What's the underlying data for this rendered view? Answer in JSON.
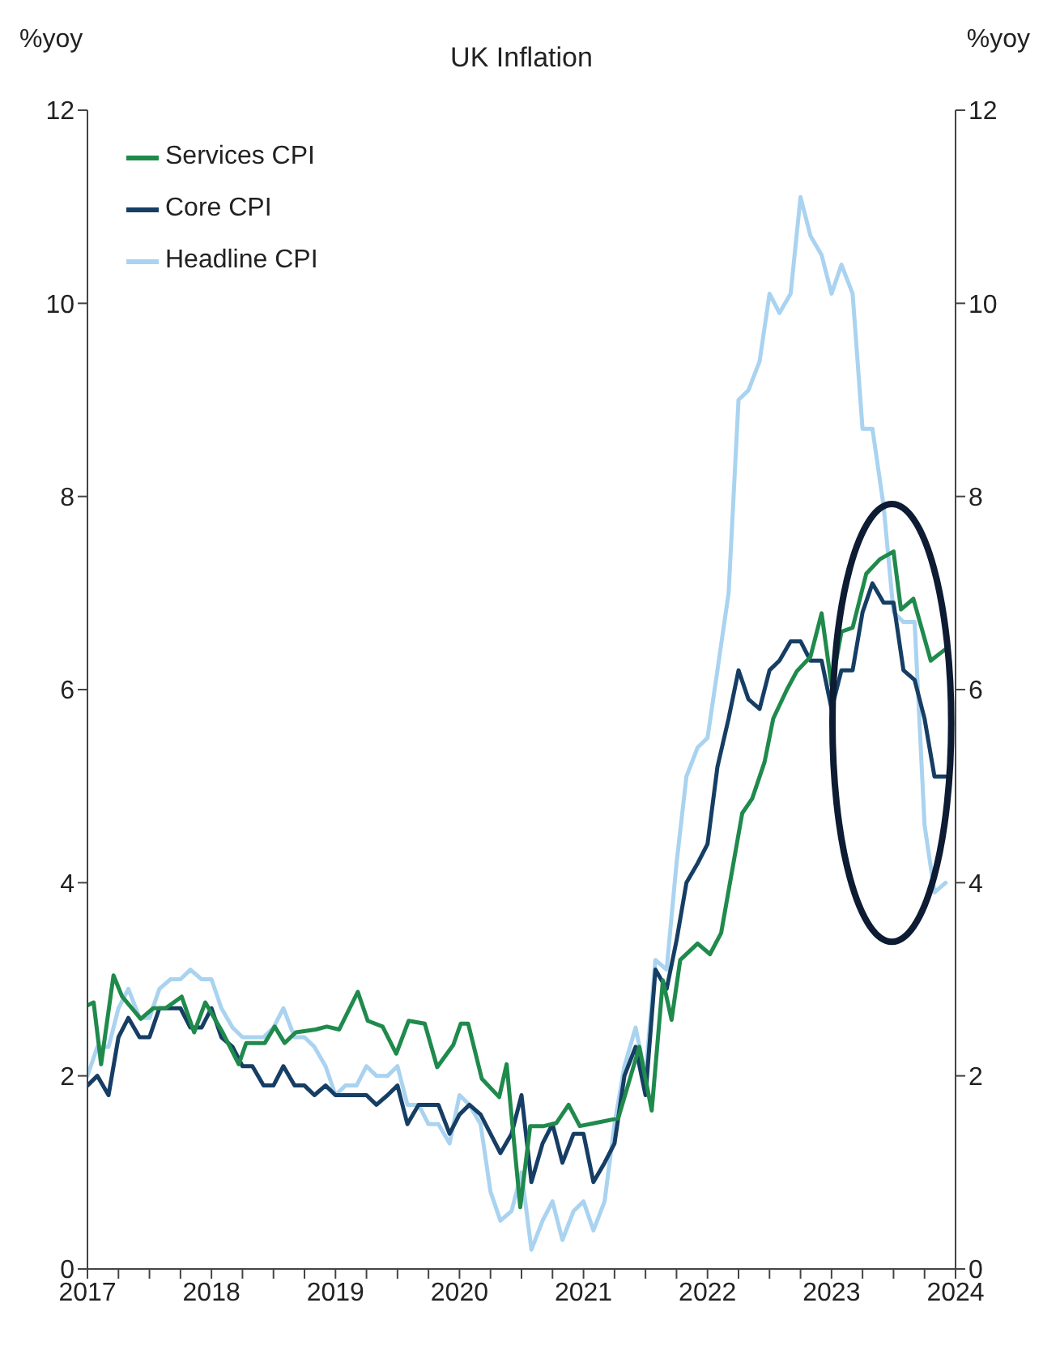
{
  "chart_data": {
    "type": "line",
    "title": "UK Inflation",
    "ylabel": "%yoy",
    "y2label": "%yoy",
    "xlim": [
      2017,
      2024
    ],
    "xticks": [
      2017,
      {
        "value": 2017.25,
        "label": null
      },
      {
        "value": 2017.5,
        "label": null
      },
      {
        "value": 2017.75,
        "label": null
      },
      2018,
      {
        "value": 2018.25,
        "label": null
      },
      {
        "value": 2018.5,
        "label": null
      },
      {
        "value": 2018.75,
        "label": null
      },
      2019,
      {
        "value": 2019.25,
        "label": null
      },
      {
        "value": 2019.5,
        "label": null
      },
      {
        "value": 2019.75,
        "label": null
      },
      2020,
      {
        "value": 2020.25,
        "label": null
      },
      {
        "value": 2020.5,
        "label": null
      },
      {
        "value": 2020.75,
        "label": null
      },
      2021,
      {
        "value": 2021.25,
        "label": null
      },
      {
        "value": 2021.5,
        "label": null
      },
      {
        "value": 2021.75,
        "label": null
      },
      2022,
      {
        "value": 2022.25,
        "label": null
      },
      {
        "value": 2022.5,
        "label": null
      },
      {
        "value": 2022.75,
        "label": null
      },
      2023,
      {
        "value": 2023.25,
        "label": null
      },
      {
        "value": 2023.5,
        "label": null
      },
      {
        "value": 2023.75,
        "label": null
      },
      2024
    ],
    "ylim": [
      0,
      12
    ],
    "yticks": [
      0,
      2,
      4,
      6,
      8,
      10,
      12
    ],
    "y2lim": [
      0,
      12
    ],
    "y2ticks": [
      0,
      2,
      4,
      6,
      8,
      10,
      12
    ],
    "legend": "top left",
    "marker": "none",
    "line_style": "solid",
    "series": [
      {
        "name": "Services CPI",
        "color": "#1f8a4c",
        "x": [
          2017.0,
          2017.05,
          2017.11,
          2017.21,
          2017.28,
          2017.43,
          2017.53,
          2017.63,
          2017.76,
          2017.86,
          2017.95,
          2018.09,
          2018.22,
          2018.28,
          2018.43,
          2018.51,
          2018.59,
          2018.68,
          2018.84,
          2018.93,
          2019.03,
          2019.18,
          2019.26,
          2019.38,
          2019.49,
          2019.59,
          2019.72,
          2019.82,
          2019.95,
          2020.01,
          2020.07,
          2020.18,
          2020.32,
          2020.38,
          2020.49,
          2020.57,
          2020.68,
          2020.78,
          2020.88,
          2020.97,
          2021.09,
          2021.28,
          2021.45,
          2021.55,
          2021.64,
          2021.71,
          2021.78,
          2021.92,
          2022.02,
          2022.11,
          2022.28,
          2022.36,
          2022.46,
          2022.53,
          2022.64,
          2022.72,
          2022.83,
          2022.92,
          2023.0,
          2023.08,
          2023.17,
          2023.28,
          2023.39,
          2023.5,
          2023.56,
          2023.66,
          2023.8,
          2023.91
        ],
        "values": [
          2.73,
          2.76,
          2.12,
          3.04,
          2.82,
          2.59,
          2.7,
          2.7,
          2.82,
          2.45,
          2.76,
          2.45,
          2.12,
          2.34,
          2.34,
          2.51,
          2.34,
          2.45,
          2.48,
          2.51,
          2.48,
          2.87,
          2.57,
          2.51,
          2.23,
          2.57,
          2.54,
          2.09,
          2.32,
          2.54,
          2.54,
          1.97,
          1.78,
          2.12,
          0.64,
          1.48,
          1.48,
          1.51,
          1.7,
          1.48,
          1.51,
          1.56,
          2.3,
          1.64,
          2.99,
          2.58,
          3.2,
          3.37,
          3.26,
          3.48,
          4.72,
          4.87,
          5.25,
          5.7,
          6.0,
          6.19,
          6.34,
          6.79,
          6.04,
          6.6,
          6.64,
          7.2,
          7.35,
          7.43,
          6.83,
          6.94,
          6.3,
          6.41
        ]
      },
      {
        "name": "Core CPI",
        "color": "#163e64",
        "x": [
          2017.0,
          2017.08,
          2017.17,
          2017.25,
          2017.33,
          2017.42,
          2017.5,
          2017.58,
          2017.67,
          2017.75,
          2017.83,
          2017.92,
          2018.0,
          2018.08,
          2018.17,
          2018.25,
          2018.33,
          2018.42,
          2018.5,
          2018.58,
          2018.67,
          2018.75,
          2018.83,
          2018.92,
          2019.0,
          2019.08,
          2019.17,
          2019.25,
          2019.33,
          2019.42,
          2019.5,
          2019.58,
          2019.67,
          2019.75,
          2019.83,
          2019.92,
          2020.0,
          2020.08,
          2020.17,
          2020.25,
          2020.33,
          2020.42,
          2020.5,
          2020.58,
          2020.67,
          2020.75,
          2020.83,
          2020.92,
          2021.0,
          2021.08,
          2021.17,
          2021.25,
          2021.33,
          2021.42,
          2021.5,
          2021.58,
          2021.67,
          2021.75,
          2021.83,
          2021.92,
          2022.0,
          2022.08,
          2022.17,
          2022.25,
          2022.33,
          2022.42,
          2022.5,
          2022.58,
          2022.67,
          2022.75,
          2022.83,
          2022.92,
          2023.0,
          2023.08,
          2023.17,
          2023.25,
          2023.33,
          2023.42,
          2023.5,
          2023.58,
          2023.67,
          2023.75,
          2023.83,
          2023.92
        ],
        "values": [
          1.9,
          2.0,
          1.8,
          2.4,
          2.6,
          2.4,
          2.4,
          2.7,
          2.7,
          2.7,
          2.5,
          2.5,
          2.7,
          2.4,
          2.3,
          2.1,
          2.1,
          1.9,
          1.9,
          2.1,
          1.9,
          1.9,
          1.8,
          1.9,
          1.8,
          1.8,
          1.8,
          1.8,
          1.7,
          1.8,
          1.9,
          1.5,
          1.7,
          1.7,
          1.7,
          1.4,
          1.6,
          1.7,
          1.6,
          1.4,
          1.2,
          1.4,
          1.8,
          0.9,
          1.3,
          1.5,
          1.1,
          1.4,
          1.4,
          0.9,
          1.1,
          1.3,
          2.0,
          2.3,
          1.8,
          3.1,
          2.9,
          3.4,
          4.0,
          4.2,
          4.4,
          5.2,
          5.7,
          6.2,
          5.9,
          5.8,
          6.2,
          6.3,
          6.5,
          6.5,
          6.3,
          6.3,
          5.8,
          6.2,
          6.2,
          6.8,
          7.1,
          6.9,
          6.9,
          6.2,
          6.1,
          5.7,
          5.1,
          5.1
        ]
      },
      {
        "name": "Headline CPI",
        "color": "#a9d3f0",
        "x": [
          2017.0,
          2017.08,
          2017.17,
          2017.25,
          2017.33,
          2017.42,
          2017.5,
          2017.58,
          2017.67,
          2017.75,
          2017.83,
          2017.92,
          2018.0,
          2018.08,
          2018.17,
          2018.25,
          2018.33,
          2018.42,
          2018.5,
          2018.58,
          2018.67,
          2018.75,
          2018.83,
          2018.92,
          2019.0,
          2019.08,
          2019.17,
          2019.25,
          2019.33,
          2019.42,
          2019.5,
          2019.58,
          2019.67,
          2019.75,
          2019.83,
          2019.92,
          2020.0,
          2020.08,
          2020.17,
          2020.25,
          2020.33,
          2020.42,
          2020.5,
          2020.58,
          2020.67,
          2020.75,
          2020.83,
          2020.92,
          2021.0,
          2021.08,
          2021.17,
          2021.25,
          2021.33,
          2021.42,
          2021.5,
          2021.58,
          2021.67,
          2021.75,
          2021.83,
          2021.92,
          2022.0,
          2022.08,
          2022.17,
          2022.25,
          2022.33,
          2022.42,
          2022.5,
          2022.58,
          2022.67,
          2022.75,
          2022.83,
          2022.92,
          2023.0,
          2023.08,
          2023.17,
          2023.25,
          2023.33,
          2023.42,
          2023.5,
          2023.58,
          2023.67,
          2023.75,
          2023.83,
          2023.92
        ],
        "values": [
          2.0,
          2.3,
          2.3,
          2.7,
          2.9,
          2.6,
          2.6,
          2.9,
          3.0,
          3.0,
          3.1,
          3.0,
          3.0,
          2.7,
          2.5,
          2.4,
          2.4,
          2.4,
          2.5,
          2.7,
          2.4,
          2.4,
          2.3,
          2.1,
          1.8,
          1.9,
          1.9,
          2.1,
          2.0,
          2.0,
          2.1,
          1.7,
          1.7,
          1.5,
          1.5,
          1.3,
          1.8,
          1.7,
          1.5,
          0.8,
          0.5,
          0.6,
          1.0,
          0.2,
          0.5,
          0.7,
          0.3,
          0.6,
          0.7,
          0.4,
          0.7,
          1.5,
          2.1,
          2.5,
          2.0,
          3.2,
          3.1,
          4.2,
          5.1,
          5.4,
          5.5,
          6.2,
          7.0,
          9.0,
          9.1,
          9.4,
          10.1,
          9.9,
          10.1,
          11.1,
          10.7,
          10.5,
          10.1,
          10.4,
          10.1,
          8.7,
          8.7,
          7.9,
          6.8,
          6.7,
          6.7,
          4.6,
          3.9,
          4.0
        ]
      }
    ]
  }
}
